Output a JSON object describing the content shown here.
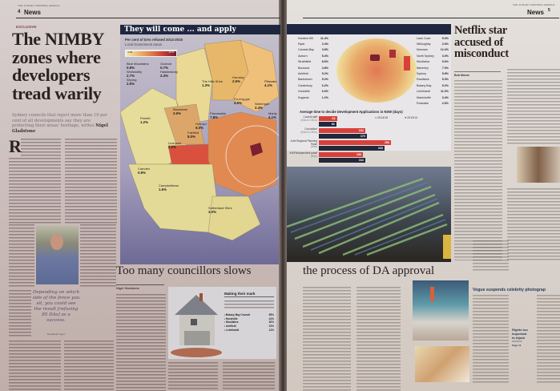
{
  "left_page": {
    "section": "News",
    "page_number": "4",
    "masthead": "THE SYDNEY MORNING HERALD",
    "kicker": "EXCLUSIVE",
    "headline": [
      "The NIMBY",
      "zones where",
      "developers",
      "tread warily"
    ],
    "standfirst": "Sydney councils that reject more than 10 per cent of all developments say they are protecting their areas' heritage,",
    "standfirst_byline_prefix": "writes",
    "byline": "Nigel Gladstone",
    "drop_cap": "R",
    "pull_quote": "Depending on which side of the fence you sit, you could see the result [refusing 85 DAs] as a success.",
    "pull_quote_attribution": "Strathfield mayor"
  },
  "right_page": {
    "section": "News",
    "page_number": "5",
    "masthead": "THE SYDNEY MORNING HERALD",
    "netflix_headline": [
      "Netflix star",
      "accused of",
      "misconduct"
    ],
    "netflix_byline": "Bob Moran",
    "vogue_headline": "Vogue suspends celebrity photograp",
    "opinion_teaser": {
      "title": [
        "Rights too",
        "important",
        "to hijack"
      ],
      "label": "OPINION",
      "page": "Page 19"
    }
  },
  "graphic": {
    "title": "They will come ... and apply",
    "map_title": "Per cent of DAs refused 2014-2016",
    "map_subtitle": "Local Government areas",
    "legend_min": "0.2%",
    "legend_max": "12.4%",
    "colors": {
      "low": "#e9e09a",
      "mid": "#e9a55c",
      "high": "#d84a3a",
      "max": "#7a2030",
      "navy": "#1f2740"
    },
    "outer_areas": [
      {
        "name": "Blue Mountains",
        "value": "0.8%"
      },
      {
        "name": "Gosford",
        "value": "0.7%"
      },
      {
        "name": "Wollondilly",
        "value": "2.7%"
      },
      {
        "name": "Hawkesbury",
        "value": "2.4%"
      },
      {
        "name": "Wyong",
        "value": "2.5%"
      },
      {
        "name": "The Hills Shire",
        "value": "1.3%"
      },
      {
        "name": "Hornsby",
        "value": "2.6%"
      },
      {
        "name": "Pittwater",
        "value": "4.1%"
      },
      {
        "name": "Ku-ring-gai",
        "value": "4.5%"
      },
      {
        "name": "Warringah",
        "value": "2.4%"
      },
      {
        "name": "Manly",
        "value": "4.1%"
      },
      {
        "name": "Blacktown",
        "value": "2.6%"
      },
      {
        "name": "Parramatta",
        "value": "7.8%"
      },
      {
        "name": "Holroyd",
        "value": "6.0%"
      },
      {
        "name": "Fairfield",
        "value": "8.0%"
      },
      {
        "name": "Penrith",
        "value": "1.2%"
      },
      {
        "name": "Liverpool",
        "value": "2.2%"
      },
      {
        "name": "Camden",
        "value": "0.8%"
      },
      {
        "name": "Campbelltown",
        "value": "1.6%"
      },
      {
        "name": "Sutherland Shire",
        "value": "3.0%"
      }
    ],
    "inner_left": [
      {
        "name": "Hunters Hill",
        "value": "11.4%"
      },
      {
        "name": "Ryde",
        "value": "2.4%"
      },
      {
        "name": "Canada Bay",
        "value": "3.8%"
      },
      {
        "name": "Auburn",
        "value": "5.4%"
      },
      {
        "name": "Strathfield",
        "value": "8.6%"
      },
      {
        "name": "Burwood",
        "value": "4.8%"
      },
      {
        "name": "Ashfield",
        "value": "5.2%"
      },
      {
        "name": "Bankstown",
        "value": "5.2%"
      },
      {
        "name": "Canterbury",
        "value": "6.2%"
      },
      {
        "name": "Hurstville",
        "value": "6.0%"
      },
      {
        "name": "Kogarah",
        "value": "1.2%"
      }
    ],
    "inner_right": [
      {
        "name": "Lane Cove",
        "value": "5.0%"
      },
      {
        "name": "Willoughby",
        "value": "2.6%"
      },
      {
        "name": "Mosman",
        "value": "12.4%"
      },
      {
        "name": "North Sydney",
        "value": "3.0%"
      },
      {
        "name": "Woollahra",
        "value": "9.6%"
      },
      {
        "name": "Waverley",
        "value": "7.0%"
      },
      {
        "name": "Sydney",
        "value": "5.8%"
      },
      {
        "name": "Randwick",
        "value": "5.3%"
      },
      {
        "name": "Botany Bay",
        "value": "5.2%"
      },
      {
        "name": "Leichhardt",
        "value": "11.0%"
      },
      {
        "name": "Marrickville",
        "value": "3.4%"
      },
      {
        "name": "Rockdale",
        "value": "2.6%"
      }
    ]
  },
  "chart_data": {
    "type": "bar",
    "title": "Average time to decide Development Applications in NSW (days)",
    "categories": [
      {
        "name": "Council staff",
        "sub": "(DAs & CDCs)"
      },
      {
        "name": "Councillors",
        "sub": "(DAs & CDCs)"
      },
      {
        "name": "Joint Regional Planning Panel",
        "sub": "(DAs)"
      },
      {
        "name": "IHAP/independent panel",
        "sub": "(DAs)"
      }
    ],
    "series": [
      {
        "name": "2014/15",
        "color": "#d8403a",
        "values": [
          64,
          164,
          256,
          156
        ]
      },
      {
        "name": "2013/14",
        "color": "#23283a",
        "values": [
          62,
          170,
          233,
          164
        ]
      }
    ],
    "orientation": "horizontal",
    "legend": "top-right"
  },
  "story2": {
    "headline_left": "Too many councillors slows",
    "headline_right": "the process of DA approval",
    "byline": "Nigel Gladstone",
    "sidebar_title": "Making their mark",
    "sidebar_items": [
      {
        "name": "Botany Bay Council",
        "value": "55%"
      },
      {
        "name": "Hurstville",
        "value": "41%"
      },
      {
        "name": "Woollahra",
        "value": "30%"
      },
      {
        "name": "Ashfield",
        "value": "12%"
      },
      {
        "name": "Leichhardt",
        "value": "11%"
      }
    ]
  }
}
